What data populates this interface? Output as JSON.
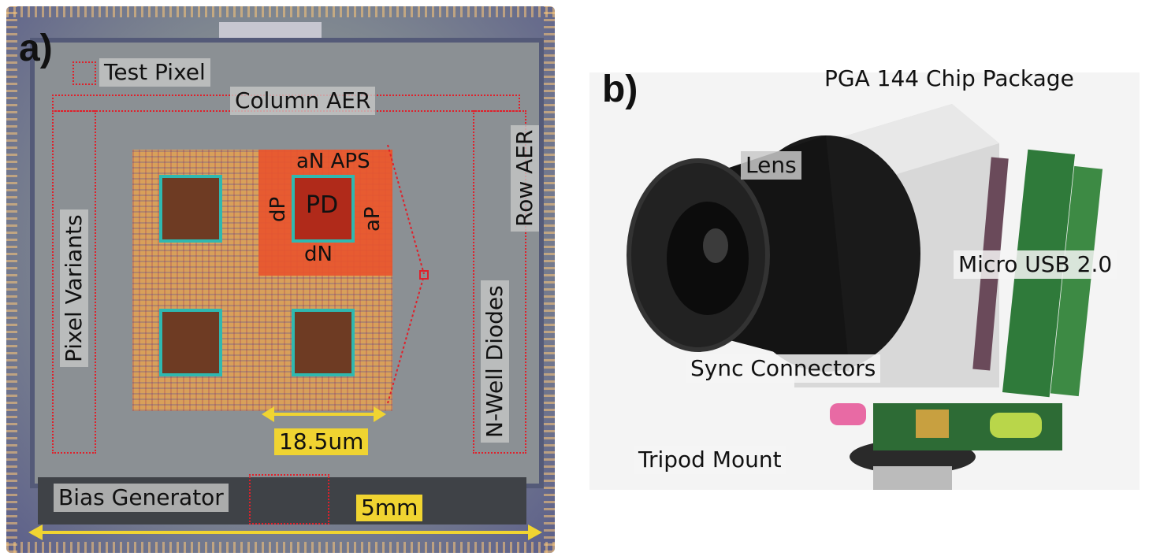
{
  "panel_a": {
    "label": "a)",
    "labels": {
      "test_pixel": "Test Pixel",
      "column_aer": "Column AER",
      "row_aer": "Row AER",
      "pixel_variants": "Pixel Variants",
      "n_well_diodes": "N-Well Diodes",
      "an_aps": "aN APS",
      "pd": "PD",
      "dp": "dP",
      "ap": "aP",
      "dn": "dN",
      "scale_pixel": "18.5um",
      "bias_generator": "Bias Generator",
      "scale_die": "5mm"
    }
  },
  "panel_b": {
    "label": "b)",
    "labels": {
      "pga_package": "PGA 144 Chip Package",
      "lens": "Lens",
      "micro_usb": "Micro USB 2.0",
      "sync_connectors": "Sync Connectors",
      "tripod_mount": "Tripod Mount"
    }
  },
  "colors": {
    "annotation_red": "#e0202a",
    "scale_yellow": "#f0d431"
  }
}
